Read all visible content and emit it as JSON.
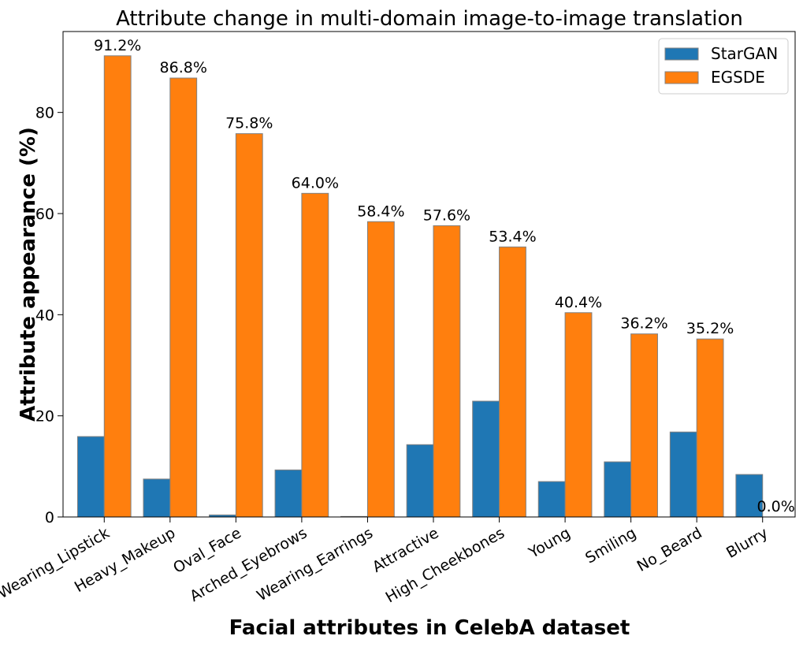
{
  "chart_data": {
    "type": "bar",
    "title": "Attribute change in multi-domain image-to-image translation",
    "xlabel": "Facial attributes in CelebA dataset",
    "ylabel": "Attribute appearance (%)",
    "ylim": [
      0,
      96
    ],
    "yticks": [
      0,
      20,
      40,
      60,
      80
    ],
    "categories": [
      "Wearing_Lipstick",
      "Heavy_Makeup",
      "Oval_Face",
      "Arched_Eyebrows",
      "Wearing_Earrings",
      "Attractive",
      "High_Cheekbones",
      "Young",
      "Smiling",
      "No_Beard",
      "Blurry"
    ],
    "series": [
      {
        "name": "StarGAN",
        "color": "#1f77b4",
        "values": [
          15.9,
          7.5,
          0.4,
          9.3,
          0.1,
          14.3,
          22.9,
          7.0,
          10.9,
          16.8,
          8.4
        ]
      },
      {
        "name": "EGSDE",
        "color": "#ff7f0e",
        "values": [
          91.2,
          86.8,
          75.8,
          64.0,
          58.4,
          57.6,
          53.4,
          40.4,
          36.2,
          35.2,
          0.0
        ]
      }
    ],
    "data_labels": [
      "91.2%",
      "86.8%",
      "75.8%",
      "64.0%",
      "58.4%",
      "57.6%",
      "53.4%",
      "40.4%",
      "36.2%",
      "35.2%",
      "0.0%"
    ],
    "legend_position": "top-right",
    "grid": false
  }
}
